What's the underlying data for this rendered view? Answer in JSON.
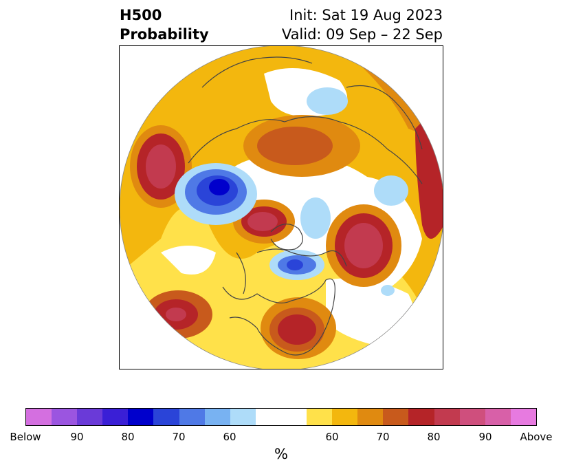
{
  "header": {
    "title_line1": "H500",
    "title_line2": "Probability",
    "init_text": "Init: Sat 19 Aug 2023",
    "valid_text": "Valid: 09 Sep – 22 Sep"
  },
  "colorbar": {
    "unit": "%",
    "tick_labels": [
      "Below",
      "90",
      "80",
      "70",
      "60",
      "60",
      "70",
      "80",
      "90",
      "Above"
    ],
    "colors": [
      "#d46fe0",
      "#9b55e0",
      "#6a3ad8",
      "#3a1fd6",
      "#0000cc",
      "#2a44d8",
      "#4f79e6",
      "#78b2f2",
      "#aedcf9",
      "#ffffff",
      "#ffe14a",
      "#f3b70e",
      "#e08a10",
      "#c85a1c",
      "#b52428",
      "#c23a4f",
      "#cf4f7d",
      "#d860a8",
      "#e77ae0"
    ]
  },
  "map": {
    "projection": "north polar stereographic",
    "region": "Northern Hemisphere",
    "anomaly_centers": [
      {
        "type": "above",
        "level": "high",
        "region": "North Pacific / Aleutians"
      },
      {
        "type": "above",
        "level": "high",
        "region": "Western Siberia"
      },
      {
        "type": "above",
        "level": "high",
        "region": "Hudson Bay / Baffin"
      },
      {
        "type": "above",
        "level": "high",
        "region": "Northeast Atlantic / Scandinavia"
      },
      {
        "type": "above",
        "level": "high",
        "region": "Southern United States"
      },
      {
        "type": "above",
        "level": "high",
        "region": "Subtropical Pacific"
      },
      {
        "type": "below",
        "level": "high",
        "region": "Eastern Siberia / Arctic"
      },
      {
        "type": "below",
        "level": "moderate",
        "region": "Greenland / Labrador"
      },
      {
        "type": "below",
        "level": "low",
        "region": "Central Arctic"
      },
      {
        "type": "below",
        "level": "low",
        "region": "North Pacific / Bering"
      }
    ]
  }
}
